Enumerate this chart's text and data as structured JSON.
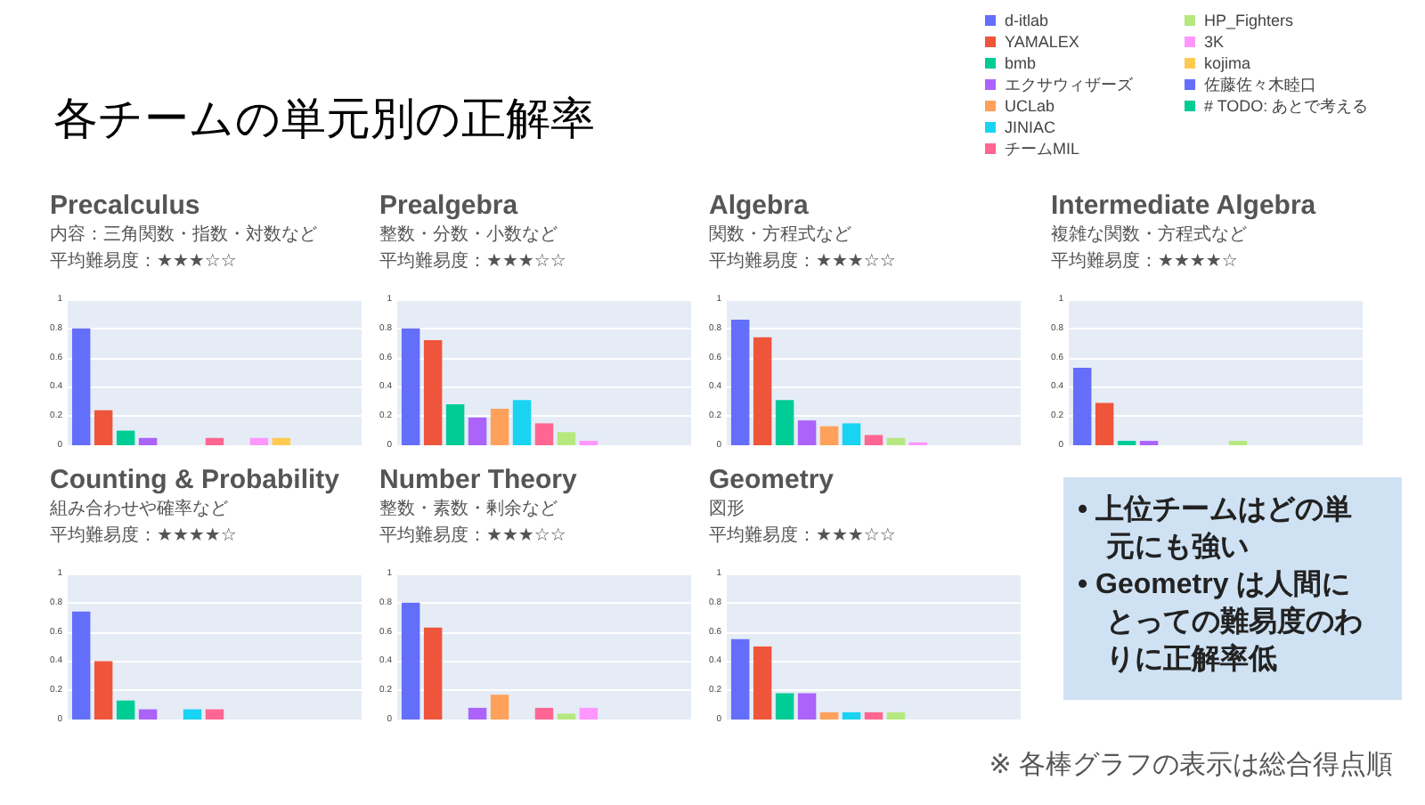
{
  "chart_data": [
    {
      "type": "bar",
      "title": "Precalculus",
      "subtitle": "内容：三角関数・指数・対数など",
      "annotations": [
        "平均難易度：★★★☆☆"
      ],
      "categories": [
        null
      ],
      "ylim": [
        0,
        1
      ],
      "yticks": [
        0,
        0.2,
        0.4,
        0.6,
        0.8,
        1
      ],
      "grid": "y",
      "tick_labels": "y",
      "legend": "top right",
      "series": [
        {
          "name": "d-itlab",
          "color": "#636efa",
          "values": [
            0.8
          ]
        },
        {
          "name": "YAMALEX",
          "color": "#ef553b",
          "values": [
            0.24
          ]
        },
        {
          "name": "bmb",
          "color": "#00cc96",
          "values": [
            0.1
          ]
        },
        {
          "name": "エクサウィザーズ",
          "color": "#ab63fa",
          "values": [
            0.05
          ]
        },
        {
          "name": "UCLab",
          "color": "#ffa15a",
          "values": [
            0
          ]
        },
        {
          "name": "JINIAC",
          "color": "#19d3f3",
          "values": [
            0
          ]
        },
        {
          "name": "チームMIL",
          "color": "#ff6692",
          "values": [
            0.05
          ]
        },
        {
          "name": "HP_Fighters",
          "color": "#b6e880",
          "values": [
            0
          ]
        },
        {
          "name": "3K",
          "color": "#ff97ff",
          "values": [
            0.05
          ]
        },
        {
          "name": "kojima",
          "color": "#fecb52",
          "values": [
            0.05
          ]
        },
        {
          "name": "佐藤佐々木睦口",
          "color": "#636efa",
          "values": [
            0
          ]
        },
        {
          "color": "#ef553b",
          "values": [
            0
          ]
        },
        {
          "name": "# TODO: あとで考える",
          "color": "#00cc96",
          "values": [
            0
          ]
        }
      ]
    },
    {
      "type": "bar",
      "title": "Prealgebra",
      "subtitle": "整数・分数・小数など",
      "annotations": [
        "平均難易度：★★★☆☆"
      ],
      "categories": [
        null
      ],
      "ylim": [
        0,
        1
      ],
      "yticks": [
        0,
        0.2,
        0.4,
        0.6,
        0.8,
        1
      ],
      "grid": "y",
      "tick_labels": "y",
      "series": [
        {
          "color": "#636efa",
          "values": [
            0.8
          ]
        },
        {
          "color": "#ef553b",
          "values": [
            0.72
          ]
        },
        {
          "color": "#00cc96",
          "values": [
            0.28
          ]
        },
        {
          "color": "#ab63fa",
          "values": [
            0.19
          ]
        },
        {
          "color": "#ffa15a",
          "values": [
            0.25
          ]
        },
        {
          "color": "#19d3f3",
          "values": [
            0.31
          ]
        },
        {
          "color": "#ff6692",
          "values": [
            0.15
          ]
        },
        {
          "color": "#b6e880",
          "values": [
            0.09
          ]
        },
        {
          "color": "#ff97ff",
          "values": [
            0.03
          ]
        },
        {
          "color": "#fecb52",
          "values": [
            0
          ]
        },
        {
          "color": "#636efa",
          "values": [
            0
          ]
        },
        {
          "color": "#ef553b",
          "values": [
            0
          ]
        },
        {
          "color": "#00cc96",
          "values": [
            0
          ]
        }
      ]
    },
    {
      "type": "bar",
      "title": "Algebra",
      "subtitle": "関数・方程式など",
      "annotations": [
        "平均難易度：★★★☆☆"
      ],
      "categories": [
        null
      ],
      "ylim": [
        0,
        1
      ],
      "yticks": [
        0,
        0.2,
        0.4,
        0.6,
        0.8,
        1
      ],
      "grid": "y",
      "tick_labels": "y",
      "series": [
        {
          "color": "#636efa",
          "values": [
            0.86
          ]
        },
        {
          "color": "#ef553b",
          "values": [
            0.74
          ]
        },
        {
          "color": "#00cc96",
          "values": [
            0.31
          ]
        },
        {
          "color": "#ab63fa",
          "values": [
            0.17
          ]
        },
        {
          "color": "#ffa15a",
          "values": [
            0.13
          ]
        },
        {
          "color": "#19d3f3",
          "values": [
            0.15
          ]
        },
        {
          "color": "#ff6692",
          "values": [
            0.07
          ]
        },
        {
          "color": "#b6e880",
          "values": [
            0.05
          ]
        },
        {
          "color": "#ff97ff",
          "values": [
            0.02
          ]
        },
        {
          "color": "#fecb52",
          "values": [
            0
          ]
        },
        {
          "color": "#636efa",
          "values": [
            0
          ]
        },
        {
          "color": "#ef553b",
          "values": [
            0
          ]
        },
        {
          "color": "#00cc96",
          "values": [
            0
          ]
        }
      ]
    },
    {
      "type": "bar",
      "title": "Intermediate Algebra",
      "subtitle": "複雑な関数・方程式など",
      "annotations": [
        "平均難易度：★★★★☆"
      ],
      "categories": [
        null
      ],
      "ylim": [
        0,
        1
      ],
      "yticks": [
        0,
        0.2,
        0.4,
        0.6,
        0.8,
        1
      ],
      "grid": "y",
      "tick_labels": "y",
      "series": [
        {
          "color": "#636efa",
          "values": [
            0.53
          ]
        },
        {
          "color": "#ef553b",
          "values": [
            0.29
          ]
        },
        {
          "color": "#00cc96",
          "values": [
            0.03
          ]
        },
        {
          "color": "#ab63fa",
          "values": [
            0.03
          ]
        },
        {
          "color": "#ffa15a",
          "values": [
            0
          ]
        },
        {
          "color": "#19d3f3",
          "values": [
            0
          ]
        },
        {
          "color": "#ff6692",
          "values": [
            0
          ]
        },
        {
          "color": "#b6e880",
          "values": [
            0.03
          ]
        },
        {
          "color": "#ff97ff",
          "values": [
            0
          ]
        },
        {
          "color": "#fecb52",
          "values": [
            0
          ]
        },
        {
          "color": "#636efa",
          "values": [
            0
          ]
        },
        {
          "color": "#ef553b",
          "values": [
            0
          ]
        },
        {
          "color": "#00cc96",
          "values": [
            0
          ]
        }
      ]
    },
    {
      "type": "bar",
      "title": "Counting & Probability",
      "subtitle": "組み合わせや確率など",
      "annotations": [
        "平均難易度：★★★★☆"
      ],
      "categories": [
        null
      ],
      "ylim": [
        0,
        1
      ],
      "yticks": [
        0,
        0.2,
        0.4,
        0.6,
        0.8,
        1
      ],
      "grid": "y",
      "tick_labels": "y",
      "series": [
        {
          "color": "#636efa",
          "values": [
            0.74
          ]
        },
        {
          "color": "#ef553b",
          "values": [
            0.4
          ]
        },
        {
          "color": "#00cc96",
          "values": [
            0.13
          ]
        },
        {
          "color": "#ab63fa",
          "values": [
            0.07
          ]
        },
        {
          "color": "#ffa15a",
          "values": [
            0
          ]
        },
        {
          "color": "#19d3f3",
          "values": [
            0.07
          ]
        },
        {
          "color": "#ff6692",
          "values": [
            0.07
          ]
        },
        {
          "color": "#b6e880",
          "values": [
            0
          ]
        },
        {
          "color": "#ff97ff",
          "values": [
            0
          ]
        },
        {
          "color": "#fecb52",
          "values": [
            0
          ]
        },
        {
          "color": "#636efa",
          "values": [
            0
          ]
        },
        {
          "color": "#ef553b",
          "values": [
            0
          ]
        },
        {
          "color": "#00cc96",
          "values": [
            0
          ]
        }
      ]
    },
    {
      "type": "bar",
      "title": "Number Theory",
      "subtitle": "整数・素数・剰余など",
      "annotations": [
        "平均難易度：★★★☆☆"
      ],
      "categories": [
        null
      ],
      "ylim": [
        0,
        1
      ],
      "yticks": [
        0,
        0.2,
        0.4,
        0.6,
        0.8,
        1
      ],
      "grid": "y",
      "tick_labels": "y",
      "series": [
        {
          "color": "#636efa",
          "values": [
            0.8
          ]
        },
        {
          "color": "#ef553b",
          "values": [
            0.63
          ]
        },
        {
          "color": "#00cc96",
          "values": [
            0
          ]
        },
        {
          "color": "#ab63fa",
          "values": [
            0.08
          ]
        },
        {
          "color": "#ffa15a",
          "values": [
            0.17
          ]
        },
        {
          "color": "#19d3f3",
          "values": [
            0
          ]
        },
        {
          "color": "#ff6692",
          "values": [
            0.08
          ]
        },
        {
          "color": "#b6e880",
          "values": [
            0.04
          ]
        },
        {
          "color": "#ff97ff",
          "values": [
            0.08
          ]
        },
        {
          "color": "#fecb52",
          "values": [
            0
          ]
        },
        {
          "color": "#636efa",
          "values": [
            0
          ]
        },
        {
          "color": "#ef553b",
          "values": [
            0
          ]
        },
        {
          "color": "#00cc96",
          "values": [
            0
          ]
        }
      ]
    },
    {
      "type": "bar",
      "title": "Geometry",
      "subtitle": "図形",
      "annotations": [
        "平均難易度：★★★☆☆"
      ],
      "categories": [
        null
      ],
      "ylim": [
        0,
        1
      ],
      "yticks": [
        0,
        0.2,
        0.4,
        0.6,
        0.8,
        1
      ],
      "grid": "y",
      "tick_labels": "y",
      "series": [
        {
          "color": "#636efa",
          "values": [
            0.55
          ]
        },
        {
          "color": "#ef553b",
          "values": [
            0.5
          ]
        },
        {
          "color": "#00cc96",
          "values": [
            0.18
          ]
        },
        {
          "color": "#ab63fa",
          "values": [
            0.18
          ]
        },
        {
          "color": "#ffa15a",
          "values": [
            0.05
          ]
        },
        {
          "color": "#19d3f3",
          "values": [
            0.05
          ]
        },
        {
          "color": "#ff6692",
          "values": [
            0.05
          ]
        },
        {
          "color": "#b6e880",
          "values": [
            0.05
          ]
        },
        {
          "color": "#ff97ff",
          "values": [
            0
          ]
        },
        {
          "color": "#fecb52",
          "values": [
            0
          ]
        },
        {
          "color": "#636efa",
          "values": [
            0
          ]
        },
        {
          "color": "#ef553b",
          "values": [
            0
          ]
        },
        {
          "color": "#00cc96",
          "values": [
            0
          ]
        }
      ]
    },
    {
      "type": "other",
      "title": "各チームの単元別の正解率",
      "annotations": [
        "• 上位チームはどの単元にも強い",
        "• Geometry は人間にとっての難易度のわりに正解率低",
        "※ 各棒グラフの表示は総合得点順"
      ]
    }
  ]
}
